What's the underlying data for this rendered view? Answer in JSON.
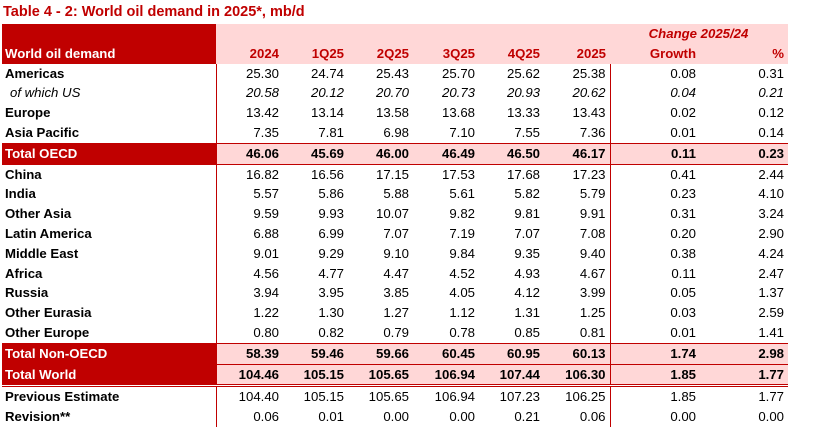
{
  "title": "Table 4 - 2: World oil demand in 2025*, mb/d",
  "header": {
    "row_label": "World oil demand",
    "columns": [
      "2024",
      "1Q25",
      "2Q25",
      "3Q25",
      "4Q25",
      "2025"
    ],
    "change_title": "Change 2025/24",
    "growth_label": "Growth",
    "percent_label": "%"
  },
  "rows": [
    {
      "label": "Americas",
      "values": [
        "25.30",
        "24.74",
        "25.43",
        "25.70",
        "25.62",
        "25.38"
      ],
      "growth": "0.08",
      "pct": "0.31"
    },
    {
      "label": "of which US",
      "values": [
        "20.58",
        "20.12",
        "20.70",
        "20.73",
        "20.93",
        "20.62"
      ],
      "growth": "0.04",
      "pct": "0.21"
    },
    {
      "label": "Europe",
      "values": [
        "13.42",
        "13.14",
        "13.58",
        "13.68",
        "13.33",
        "13.43"
      ],
      "growth": "0.02",
      "pct": "0.12"
    },
    {
      "label": "Asia Pacific",
      "values": [
        "7.35",
        "7.81",
        "6.98",
        "7.10",
        "7.55",
        "7.36"
      ],
      "growth": "0.01",
      "pct": "0.14"
    },
    {
      "label": "Total OECD",
      "values": [
        "46.06",
        "45.69",
        "46.00",
        "46.49",
        "46.50",
        "46.17"
      ],
      "growth": "0.11",
      "pct": "0.23"
    },
    {
      "label": "China",
      "values": [
        "16.82",
        "16.56",
        "17.15",
        "17.53",
        "17.68",
        "17.23"
      ],
      "growth": "0.41",
      "pct": "2.44"
    },
    {
      "label": "India",
      "values": [
        "5.57",
        "5.86",
        "5.88",
        "5.61",
        "5.82",
        "5.79"
      ],
      "growth": "0.23",
      "pct": "4.10"
    },
    {
      "label": "Other Asia",
      "values": [
        "9.59",
        "9.93",
        "10.07",
        "9.82",
        "9.81",
        "9.91"
      ],
      "growth": "0.31",
      "pct": "3.24"
    },
    {
      "label": "Latin America",
      "values": [
        "6.88",
        "6.99",
        "7.07",
        "7.19",
        "7.07",
        "7.08"
      ],
      "growth": "0.20",
      "pct": "2.90"
    },
    {
      "label": "Middle East",
      "values": [
        "9.01",
        "9.29",
        "9.10",
        "9.84",
        "9.35",
        "9.40"
      ],
      "growth": "0.38",
      "pct": "4.24"
    },
    {
      "label": "Africa",
      "values": [
        "4.56",
        "4.77",
        "4.47",
        "4.52",
        "4.93",
        "4.67"
      ],
      "growth": "0.11",
      "pct": "2.47"
    },
    {
      "label": "Russia",
      "values": [
        "3.94",
        "3.95",
        "3.85",
        "4.05",
        "4.12",
        "3.99"
      ],
      "growth": "0.05",
      "pct": "1.37"
    },
    {
      "label": "Other Eurasia",
      "values": [
        "1.22",
        "1.30",
        "1.27",
        "1.12",
        "1.31",
        "1.25"
      ],
      "growth": "0.03",
      "pct": "2.59"
    },
    {
      "label": "Other Europe",
      "values": [
        "0.80",
        "0.82",
        "0.79",
        "0.78",
        "0.85",
        "0.81"
      ],
      "growth": "0.01",
      "pct": "1.41"
    },
    {
      "label": "Total Non-OECD",
      "values": [
        "58.39",
        "59.46",
        "59.66",
        "60.45",
        "60.95",
        "60.13"
      ],
      "growth": "1.74",
      "pct": "2.98"
    },
    {
      "label": "Total World",
      "values": [
        "104.46",
        "105.15",
        "105.65",
        "106.94",
        "107.44",
        "106.30"
      ],
      "growth": "1.85",
      "pct": "1.77"
    },
    {
      "label": "Previous Estimate",
      "values": [
        "104.40",
        "105.15",
        "105.65",
        "106.94",
        "107.23",
        "106.25"
      ],
      "growth": "1.85",
      "pct": "1.77"
    },
    {
      "label": "Revision**",
      "values": [
        "0.06",
        "0.01",
        "0.00",
        "0.00",
        "0.21",
        "0.06"
      ],
      "growth": "0.00",
      "pct": "0.00"
    }
  ]
}
